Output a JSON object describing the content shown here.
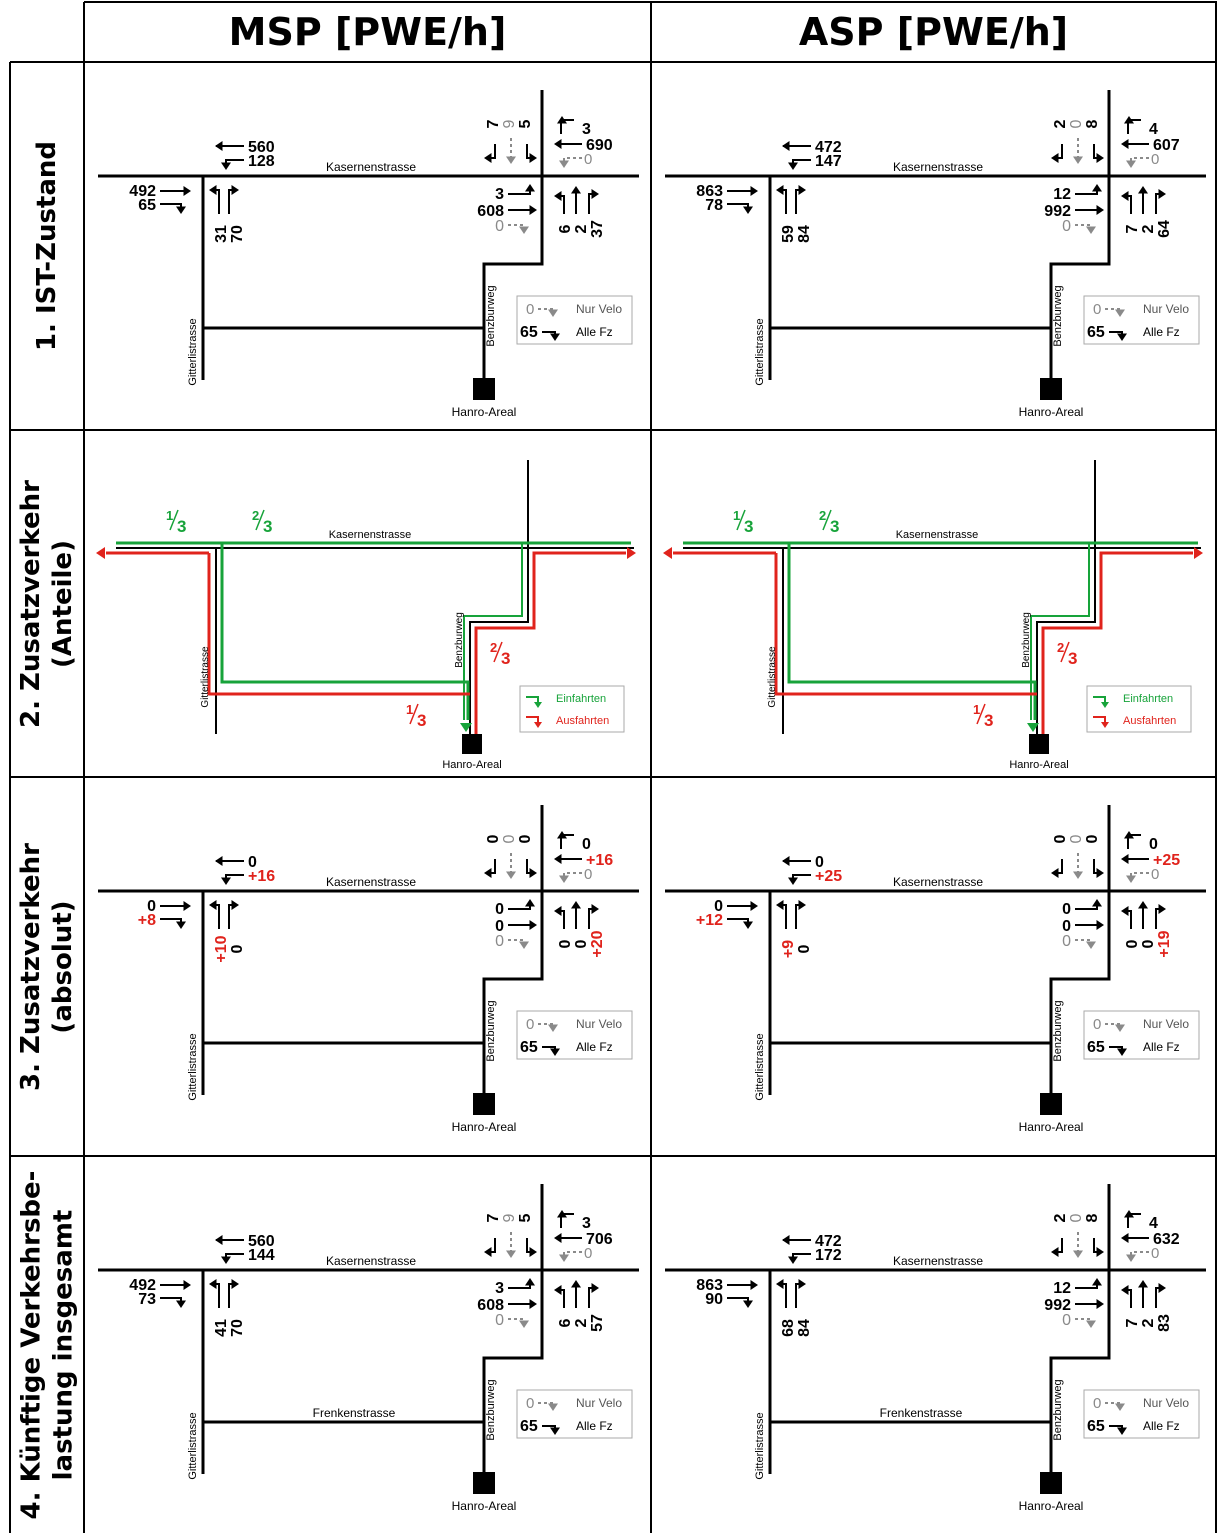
{
  "headers": {
    "msp": "MSP [PWE/h]",
    "asp": "ASP [PWE/h]"
  },
  "rows": [
    {
      "label_lines": [
        "1. IST-Zustand"
      ]
    },
    {
      "label_lines": [
        "2. Zusatzverkehr",
        "(Anteile)"
      ]
    },
    {
      "label_lines": [
        "3. Zusatzverkehr",
        "(absolut)"
      ]
    },
    {
      "label_lines": [
        "4. Künftige Verkehrsbe-",
        "lastung insgesamt"
      ]
    }
  ],
  "streets": {
    "kasernen": "Kasernenstrasse",
    "gitterli": "Gitterlistrasse",
    "benzbur": "Benzburweg",
    "frenken": "Frenkenstrasse",
    "hanro": "Hanro-Areal"
  },
  "legend": {
    "velo_value": "0",
    "velo": "Nur Velo",
    "all_value": "65",
    "all": "Alle Fz",
    "in": "Einfahrten",
    "out": "Ausfahrten"
  },
  "shares": {
    "one_third": "1/3",
    "two_thirds": "2/3"
  },
  "colors": {
    "green": "#17a33a",
    "red": "#e0231c",
    "gray": "#8a8a8a"
  },
  "cells": {
    "r1_msp": {
      "w_top": "560",
      "w_bot": "128",
      "e_top": "492",
      "e_bot": "65",
      "g_a": "31",
      "g_b": "70",
      "s_a": "7",
      "s_b": "9",
      "s_c": "5",
      "ne_top": "3",
      "ne_mid": "690",
      "ne_gray": "0",
      "c_top": "3",
      "c_mid": "608",
      "c_gray": "0",
      "b_a": "6",
      "b_b": "2",
      "b_c": "37"
    },
    "r1_asp": {
      "w_top": "472",
      "w_bot": "147",
      "e_top": "863",
      "e_bot": "78",
      "g_a": "59",
      "g_b": "84",
      "s_a": "2",
      "s_b": "0",
      "s_c": "8",
      "ne_top": "4",
      "ne_mid": "607",
      "ne_gray": "0",
      "c_top": "12",
      "c_mid": "992",
      "c_gray": "0",
      "b_a": "7",
      "b_b": "2",
      "b_c": "64"
    },
    "r3_msp": {
      "w_top": "0",
      "w_bot": "+16",
      "e_top": "0",
      "e_bot": "+8",
      "g_a": "+10",
      "g_b": "0",
      "s_a": "0",
      "s_b": "0",
      "s_c": "0",
      "ne_top": "0",
      "ne_mid": "+16",
      "ne_gray": "0",
      "c_top": "0",
      "c_mid": "0",
      "c_gray": "0",
      "b_a": "0",
      "b_b": "0",
      "b_c": "+20"
    },
    "r3_asp": {
      "w_top": "0",
      "w_bot": "+25",
      "e_top": "0",
      "e_bot": "+12",
      "g_a": "+9",
      "g_b": "0",
      "s_a": "0",
      "s_b": "0",
      "s_c": "0",
      "ne_top": "0",
      "ne_mid": "+25",
      "ne_gray": "0",
      "c_top": "0",
      "c_mid": "0",
      "c_gray": "0",
      "b_a": "0",
      "b_b": "0",
      "b_c": "+19"
    },
    "r4_msp": {
      "w_top": "560",
      "w_bot": "144",
      "e_top": "492",
      "e_bot": "73",
      "g_a": "41",
      "g_b": "70",
      "s_a": "7",
      "s_b": "9",
      "s_c": "5",
      "ne_top": "3",
      "ne_mid": "706",
      "ne_gray": "0",
      "c_top": "3",
      "c_mid": "608",
      "c_gray": "0",
      "b_a": "6",
      "b_b": "2",
      "b_c": "57"
    },
    "r4_asp": {
      "w_top": "472",
      "w_bot": "172",
      "e_top": "863",
      "e_bot": "90",
      "g_a": "68",
      "g_b": "84",
      "s_a": "2",
      "s_b": "0",
      "s_c": "8",
      "ne_top": "4",
      "ne_mid": "632",
      "ne_gray": "0",
      "c_top": "12",
      "c_mid": "992",
      "c_gray": "0",
      "b_a": "7",
      "b_b": "2",
      "b_c": "83"
    }
  }
}
